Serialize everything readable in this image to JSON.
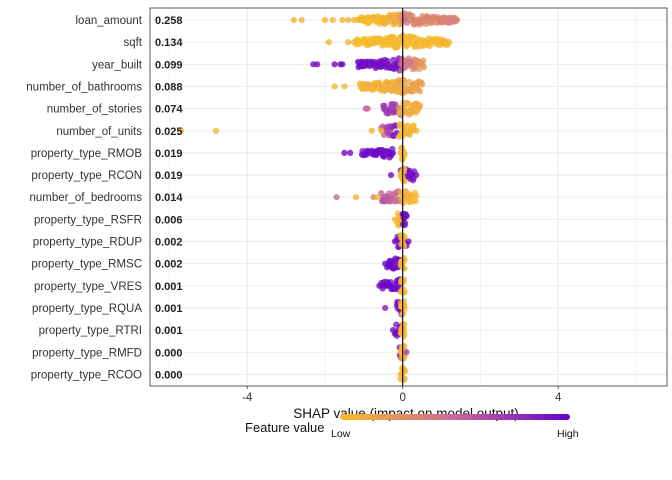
{
  "chart_data": {
    "type": "scatter",
    "subtype": "shap-summary-beeswarm",
    "xlabel": "SHAP value (impact on model output)",
    "xlim": [
      -6.5,
      6.8
    ],
    "xticks": [
      -4,
      0,
      4
    ],
    "xtick_labels": [
      "-4",
      "0",
      "4"
    ],
    "grid": true,
    "legend_placement": "bottom",
    "colors": {
      "low": "#F9BE27",
      "high": "#6600CC",
      "zero_line": "#111111",
      "grid": "#EBEBEB",
      "panel_border": "#333333"
    },
    "legend": {
      "title": "Feature value",
      "low_label": "Low",
      "high_label": "High"
    },
    "features": [
      {
        "name": "loan_amount",
        "mean_abs_shap": "0.258",
        "points": [
          {
            "x": -2.8,
            "v": 0.05
          },
          {
            "x": -2.6,
            "v": 0.05
          },
          {
            "x": -2.0,
            "v": 0.05
          },
          {
            "x": -1.8,
            "v": 0.05
          },
          {
            "x": -1.55,
            "v": 0.05
          },
          {
            "x": -1.4,
            "v": 0.05
          },
          {
            "x": -1.25,
            "v": 0.05
          },
          {
            "x": -1.15,
            "v": 0.05
          }
        ],
        "bands": [
          {
            "from": -1.1,
            "to": -0.1,
            "v_from": 0.0,
            "v_to": 0.1,
            "spread": 0.28
          },
          {
            "from": -0.1,
            "to": 0.15,
            "v_from": 0.15,
            "v_to": 0.5,
            "spread": 0.42
          },
          {
            "from": 0.15,
            "to": 1.4,
            "v_from": 0.3,
            "v_to": 0.35,
            "spread": 0.3
          }
        ]
      },
      {
        "name": "sqft",
        "mean_abs_shap": "0.134",
        "points": [
          {
            "x": -1.9,
            "v": 0.05
          },
          {
            "x": -1.4,
            "v": 0.05
          },
          {
            "x": -1.25,
            "v": 0.05
          },
          {
            "x": 1.2,
            "v": 0.05
          }
        ],
        "bands": [
          {
            "from": -1.2,
            "to": 1.15,
            "v_from": 0.02,
            "v_to": 0.05,
            "spread": 0.3
          }
        ]
      },
      {
        "name": "year_built",
        "mean_abs_shap": "0.099",
        "points": [
          {
            "x": -2.3,
            "v": 0.95
          },
          {
            "x": -2.2,
            "v": 0.95
          },
          {
            "x": -1.75,
            "v": 0.95
          },
          {
            "x": -1.6,
            "v": 0.95
          },
          {
            "x": -1.55,
            "v": 0.95
          }
        ],
        "bands": [
          {
            "from": -1.15,
            "to": -0.05,
            "v_from": 0.95,
            "v_to": 0.9,
            "spread": 0.28
          },
          {
            "from": -0.05,
            "to": 0.55,
            "v_from": 0.5,
            "v_to": 0.2,
            "spread": 0.34
          }
        ]
      },
      {
        "name": "number_of_bathrooms",
        "mean_abs_shap": "0.088",
        "points": [
          {
            "x": -1.75,
            "v": 0.05
          },
          {
            "x": -1.5,
            "v": 0.05
          }
        ],
        "bands": [
          {
            "from": -1.1,
            "to": -0.1,
            "v_from": 0.05,
            "v_to": 0.1,
            "spread": 0.26
          },
          {
            "from": -0.15,
            "to": 0.5,
            "v_from": 0.1,
            "v_to": 0.2,
            "spread": 0.42
          }
        ]
      },
      {
        "name": "number_of_stories",
        "mean_abs_shap": "0.074",
        "points": [
          {
            "x": -0.95,
            "v": 0.55
          },
          {
            "x": -0.9,
            "v": 0.5
          }
        ],
        "bands": [
          {
            "from": -0.5,
            "to": -0.05,
            "v_from": 0.7,
            "v_to": 0.75,
            "spread": 0.3
          },
          {
            "from": -0.1,
            "to": 0.45,
            "v_from": 0.1,
            "v_to": 0.1,
            "spread": 0.4
          }
        ]
      },
      {
        "name": "number_of_units",
        "mean_abs_shap": "0.025",
        "points": [
          {
            "x": -5.7,
            "v": 0.05
          },
          {
            "x": -4.8,
            "v": 0.05
          },
          {
            "x": -0.8,
            "v": 0.05
          },
          {
            "x": -0.55,
            "v": 0.05
          },
          {
            "x": 0.35,
            "v": 0.05
          }
        ],
        "bands": [
          {
            "from": -0.55,
            "to": -0.15,
            "v_from": 0.5,
            "v_to": 0.9,
            "spread": 0.22
          },
          {
            "from": -0.1,
            "to": 0.3,
            "v_from": 0.05,
            "v_to": 0.05,
            "spread": 0.38
          }
        ]
      },
      {
        "name": "property_type_RMOB",
        "mean_abs_shap": "0.019",
        "points": [
          {
            "x": -1.5,
            "v": 0.95
          },
          {
            "x": -1.35,
            "v": 0.95
          }
        ],
        "bands": [
          {
            "from": -1.05,
            "to": -0.25,
            "v_from": 0.95,
            "v_to": 0.95,
            "spread": 0.12
          },
          {
            "from": -0.05,
            "to": 0.05,
            "v_from": 0.05,
            "v_to": 0.05,
            "spread": 0.34
          }
        ]
      },
      {
        "name": "property_type_RCON",
        "mean_abs_shap": "0.019",
        "points": [
          {
            "x": -0.3,
            "v": 0.95
          },
          {
            "x": 0.35,
            "v": 0.95
          }
        ],
        "bands": [
          {
            "from": -0.05,
            "to": 0.3,
            "v_from": 0.9,
            "v_to": 0.95,
            "spread": 0.2
          },
          {
            "from": -0.05,
            "to": 0.05,
            "v_from": 0.05,
            "v_to": 0.05,
            "spread": 0.34
          }
        ]
      },
      {
        "name": "number_of_bedrooms",
        "mean_abs_shap": "0.014",
        "points": [
          {
            "x": -1.7,
            "v": 0.5
          },
          {
            "x": -1.2,
            "v": 0.1
          },
          {
            "x": -0.75,
            "v": 0.3
          },
          {
            "x": -0.65,
            "v": 0.05
          }
        ],
        "bands": [
          {
            "from": -0.55,
            "to": -0.05,
            "v_from": 0.6,
            "v_to": 0.45,
            "spread": 0.3
          },
          {
            "from": -0.05,
            "to": 0.35,
            "v_from": 0.1,
            "v_to": 0.05,
            "spread": 0.4
          }
        ]
      },
      {
        "name": "property_type_RSFR",
        "mean_abs_shap": "0.006",
        "points": [
          {
            "x": -0.2,
            "v": 0.05
          }
        ],
        "bands": [
          {
            "from": -0.15,
            "to": 0.0,
            "v_from": 0.05,
            "v_to": 0.05,
            "spread": 0.28
          },
          {
            "from": 0.0,
            "to": 0.1,
            "v_from": 0.95,
            "v_to": 0.95,
            "spread": 0.3
          }
        ]
      },
      {
        "name": "property_type_RDUP",
        "mean_abs_shap": "0.002",
        "points": [
          {
            "x": -0.2,
            "v": 0.95
          },
          {
            "x": 0.15,
            "v": 0.95
          }
        ],
        "bands": [
          {
            "from": -0.15,
            "to": 0.1,
            "v_from": 0.95,
            "v_to": 0.95,
            "spread": 0.22
          },
          {
            "from": -0.05,
            "to": 0.05,
            "v_from": 0.05,
            "v_to": 0.05,
            "spread": 0.32
          }
        ]
      },
      {
        "name": "property_type_RMSC",
        "mean_abs_shap": "0.002",
        "points": [
          {
            "x": -0.45,
            "v": 0.95
          }
        ],
        "bands": [
          {
            "from": -0.4,
            "to": -0.05,
            "v_from": 0.95,
            "v_to": 0.95,
            "spread": 0.14
          },
          {
            "from": -0.05,
            "to": 0.05,
            "v_from": 0.05,
            "v_to": 0.05,
            "spread": 0.32
          }
        ]
      },
      {
        "name": "property_type_VRES",
        "mean_abs_shap": "0.001",
        "points": [
          {
            "x": -0.6,
            "v": 0.95
          }
        ],
        "bands": [
          {
            "from": -0.55,
            "to": -0.05,
            "v_from": 0.95,
            "v_to": 0.95,
            "spread": 0.14
          },
          {
            "from": -0.05,
            "to": 0.05,
            "v_from": 0.05,
            "v_to": 0.05,
            "spread": 0.32
          }
        ]
      },
      {
        "name": "property_type_RQUA",
        "mean_abs_shap": "0.001",
        "points": [
          {
            "x": -0.45,
            "v": 0.85
          }
        ],
        "bands": [
          {
            "from": -0.15,
            "to": -0.02,
            "v_from": 0.95,
            "v_to": 0.95,
            "spread": 0.22
          },
          {
            "from": -0.05,
            "to": 0.05,
            "v_from": 0.05,
            "v_to": 0.05,
            "spread": 0.32
          }
        ]
      },
      {
        "name": "property_type_RTRI",
        "mean_abs_shap": "0.001",
        "points": [
          {
            "x": -0.25,
            "v": 0.95
          }
        ],
        "bands": [
          {
            "from": -0.2,
            "to": -0.02,
            "v_from": 0.95,
            "v_to": 0.95,
            "spread": 0.14
          },
          {
            "from": -0.05,
            "to": 0.05,
            "v_from": 0.05,
            "v_to": 0.05,
            "spread": 0.32
          }
        ]
      },
      {
        "name": "property_type_RMFD",
        "mean_abs_shap": "0.000",
        "points": [
          {
            "x": 0.1,
            "v": 0.6
          }
        ],
        "bands": [
          {
            "from": -0.08,
            "to": 0.05,
            "v_from": 0.95,
            "v_to": 0.9,
            "spread": 0.3
          },
          {
            "from": -0.05,
            "to": 0.05,
            "v_from": 0.05,
            "v_to": 0.05,
            "spread": 0.34
          }
        ]
      },
      {
        "name": "property_type_RCOO",
        "mean_abs_shap": "0.000",
        "points": [],
        "bands": [
          {
            "from": -0.06,
            "to": 0.06,
            "v_from": 0.05,
            "v_to": 0.05,
            "spread": 0.36
          }
        ]
      }
    ]
  }
}
